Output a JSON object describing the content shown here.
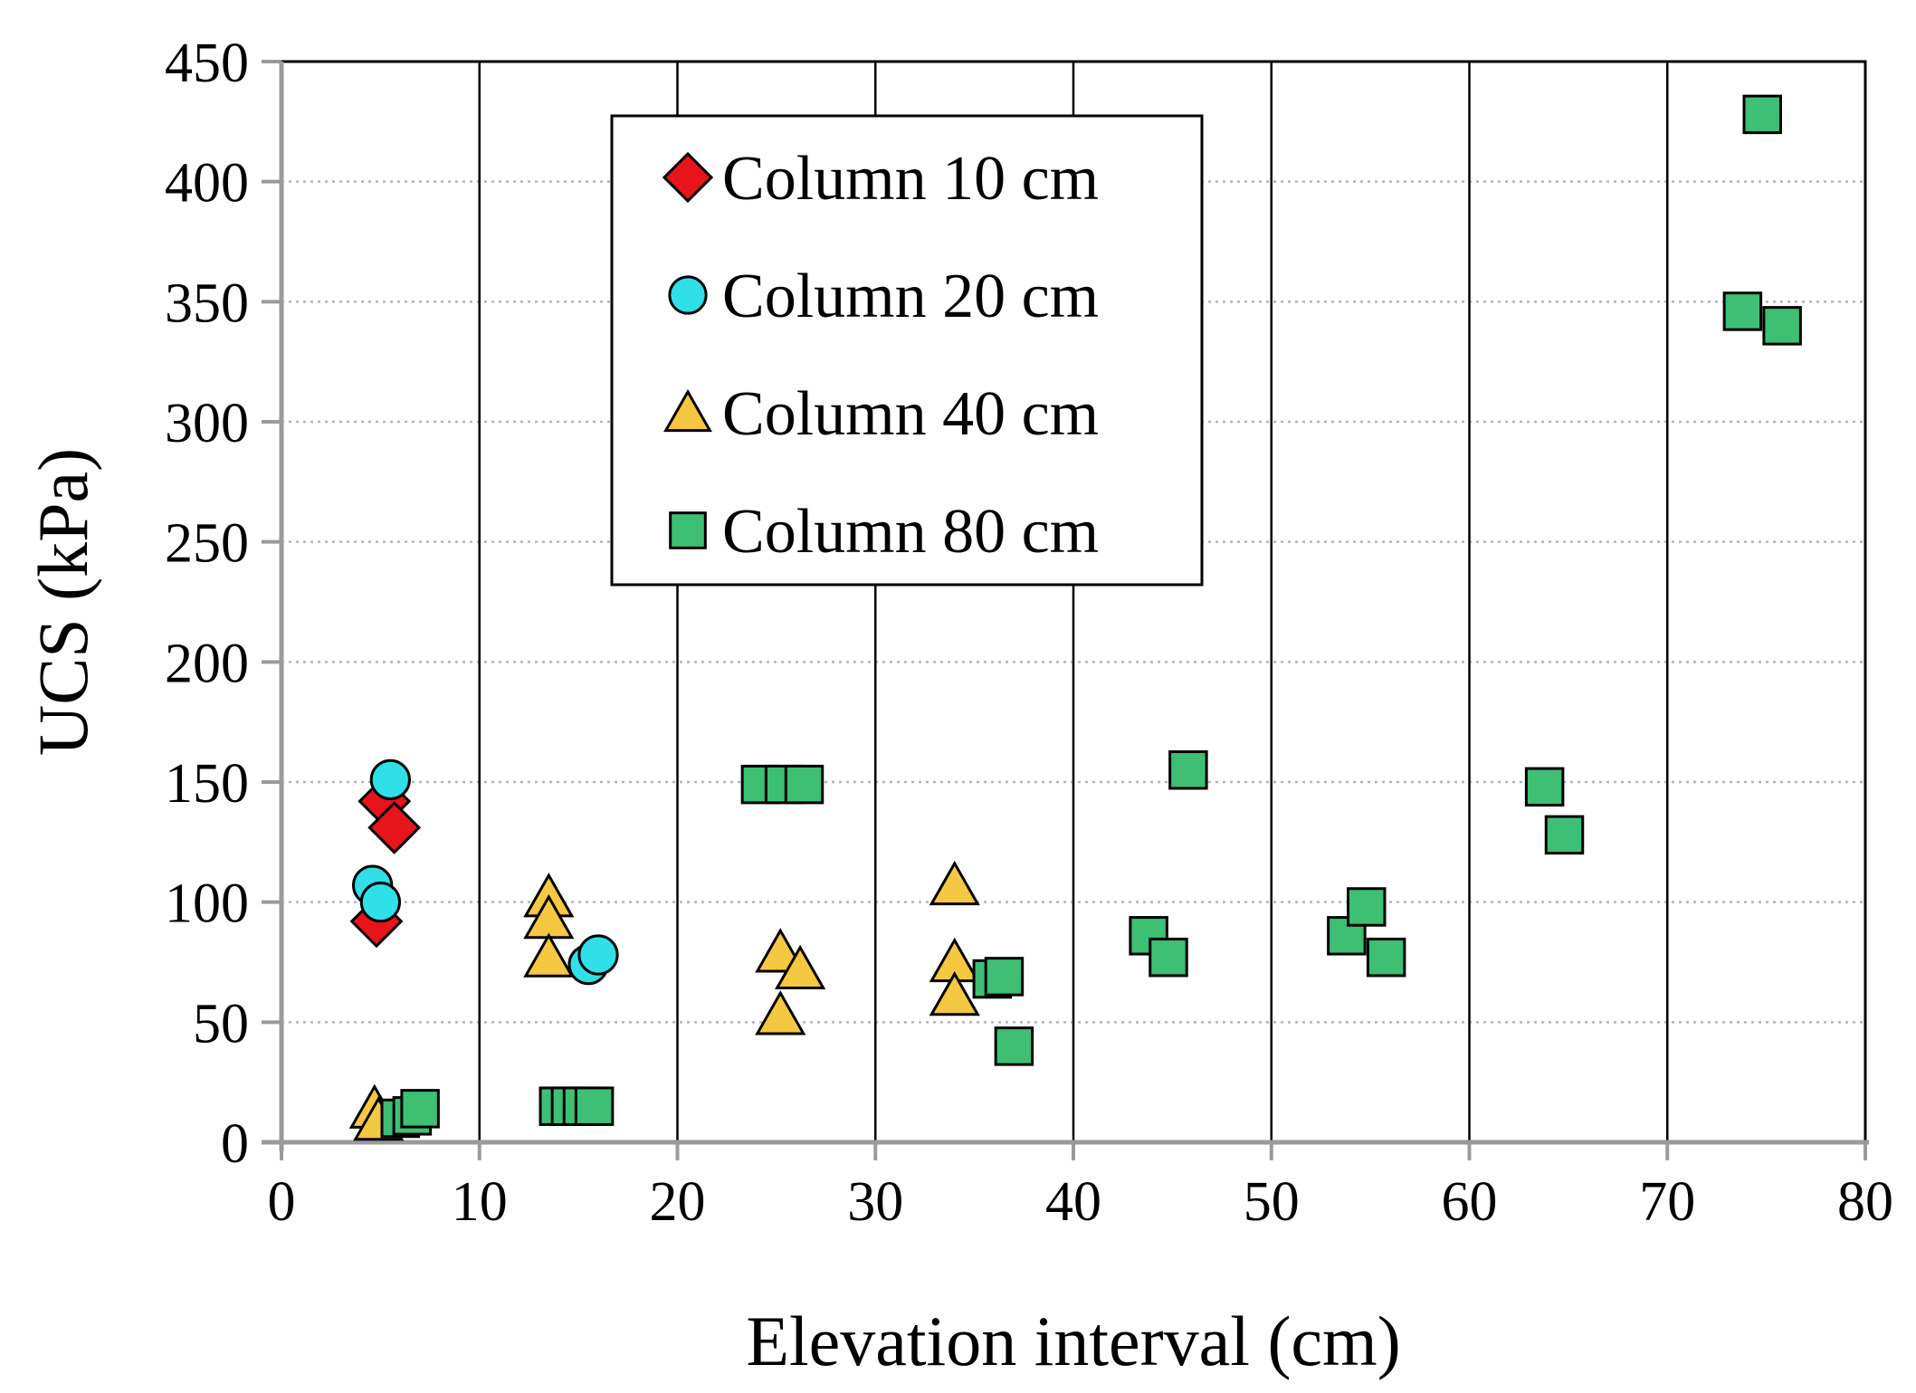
{
  "chart_data": {
    "type": "scatter",
    "title": "",
    "xlabel": "Elevation  interval  (cm)",
    "ylabel": "UCS (kPa)",
    "xlim": [
      0,
      80
    ],
    "ylim": [
      0,
      450
    ],
    "xticks": [
      0,
      10,
      20,
      30,
      40,
      50,
      60,
      70,
      80
    ],
    "yticks": [
      0,
      50,
      100,
      150,
      200,
      250,
      300,
      350,
      400,
      450
    ],
    "grid": {
      "vertical": "solid",
      "horizontal": "dotted"
    },
    "legend_position": "top-center",
    "series": [
      {
        "name": "Column 10 cm",
        "marker": "diamond",
        "color": "#e8141c",
        "points": [
          [
            5.2,
            142
          ],
          [
            5.7,
            131
          ],
          [
            4.8,
            92
          ]
        ]
      },
      {
        "name": "Column 20 cm",
        "marker": "circle",
        "color": "#2fe0e8",
        "points": [
          [
            5.5,
            151
          ],
          [
            4.6,
            107
          ],
          [
            5.0,
            100
          ],
          [
            15.5,
            74
          ],
          [
            16.0,
            78
          ]
        ]
      },
      {
        "name": "Column 40 cm",
        "marker": "triangle",
        "color": "#f5c842",
        "points": [
          [
            13.5,
            102
          ],
          [
            13.5,
            93
          ],
          [
            13.5,
            77
          ],
          [
            4.7,
            14
          ],
          [
            4.9,
            9
          ],
          [
            25.2,
            79
          ],
          [
            26.2,
            72
          ],
          [
            25.2,
            53
          ],
          [
            34.0,
            107
          ],
          [
            34.0,
            75
          ],
          [
            34.0,
            61
          ]
        ]
      },
      {
        "name": "Column 80 cm",
        "marker": "square",
        "color": "#3dbf74",
        "points": [
          [
            6.0,
            10
          ],
          [
            6.6,
            11
          ],
          [
            7.0,
            14
          ],
          [
            14.0,
            15
          ],
          [
            14.6,
            15
          ],
          [
            15.2,
            15
          ],
          [
            15.8,
            15
          ],
          [
            24.2,
            149
          ],
          [
            25.4,
            149
          ],
          [
            26.4,
            149
          ],
          [
            35.9,
            68
          ],
          [
            36.5,
            69
          ],
          [
            37.0,
            40
          ],
          [
            43.8,
            86
          ],
          [
            44.8,
            77
          ],
          [
            45.8,
            155
          ],
          [
            53.8,
            86
          ],
          [
            54.8,
            98
          ],
          [
            55.8,
            77
          ],
          [
            63.8,
            148
          ],
          [
            64.8,
            128
          ],
          [
            73.8,
            346
          ],
          [
            74.8,
            428
          ],
          [
            75.8,
            340
          ]
        ]
      }
    ]
  }
}
